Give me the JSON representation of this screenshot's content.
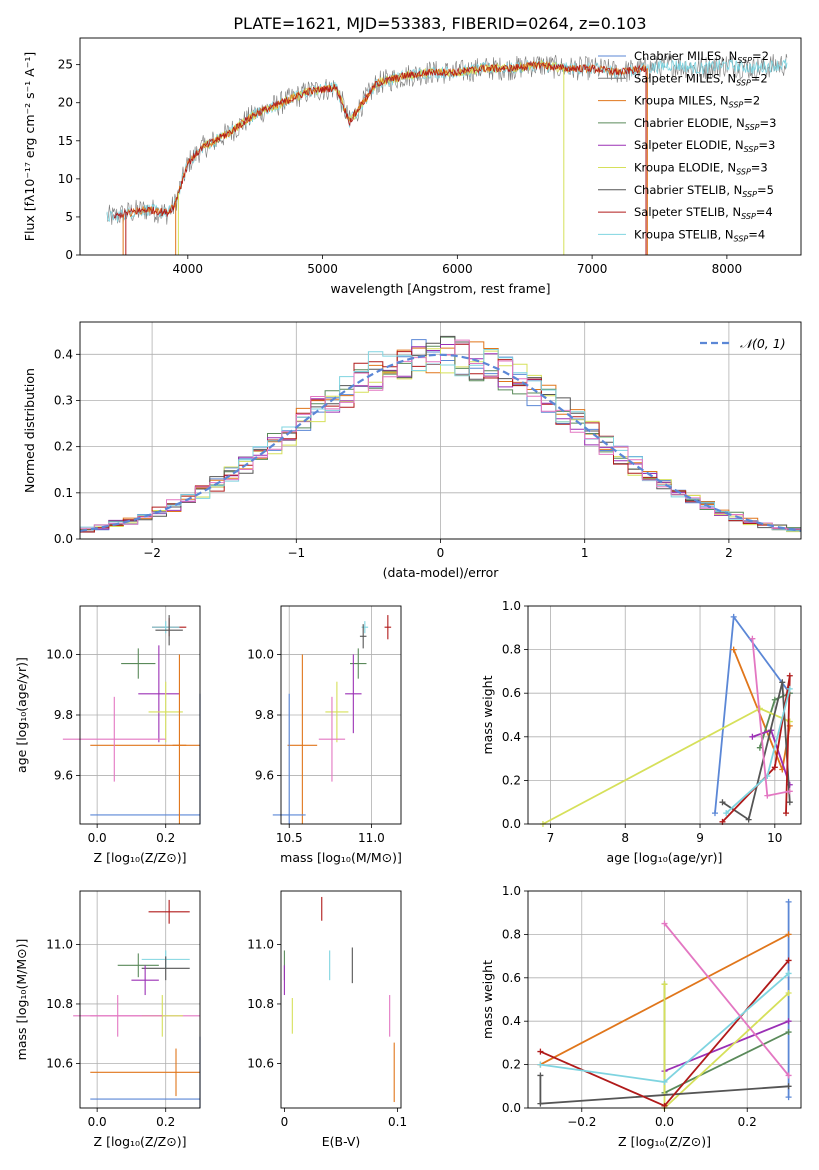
{
  "figure_title": "PLATE=1621, MJD=53383, FIBERID=0264, z=0.103",
  "colors": {
    "Chabrier MILES": "#5b87d6",
    "Salpeter MILES": "#7a7a7a",
    "Kroupa MILES": "#e0761b",
    "Chabrier ELODIE": "#5a8a5a",
    "Salpeter ELODIE": "#9b30b5",
    "Kroupa ELODIE": "#d6e05a",
    "Chabrier STELIB": "#555555",
    "Salpeter STELIB": "#b01a1a",
    "Kroupa STELIB": "#7fd4e0",
    "pink": "#e377c2"
  },
  "chart_data": [
    {
      "id": "spectrum",
      "type": "line",
      "xlabel": "wavelength [Angstrom, rest frame]",
      "ylabel": "Flux [fλ10⁻¹⁷ erg cm⁻² s⁻¹ A⁻¹]",
      "xlim": [
        3200,
        8550
      ],
      "ylim": [
        0,
        28.5
      ],
      "xticks": [
        4000,
        5000,
        6000,
        7000,
        8000
      ],
      "yticks": [
        0,
        5,
        10,
        15,
        20,
        25
      ],
      "grid": false,
      "legend_position": "top-right",
      "legend": [
        {
          "label": "Chabrier MILES, N",
          "sub": "SSP",
          "tail": "=2",
          "color": "#5b87d6"
        },
        {
          "label": "Salpeter MILES, N",
          "sub": "SSP",
          "tail": "=2",
          "color": "#7a7a7a"
        },
        {
          "label": "Kroupa MILES, N",
          "sub": "SSP",
          "tail": "=2",
          "color": "#e0761b"
        },
        {
          "label": "Chabrier ELODIE, N",
          "sub": "SSP",
          "tail": "=3",
          "color": "#5a8a5a"
        },
        {
          "label": "Salpeter ELODIE, N",
          "sub": "SSP",
          "tail": "=3",
          "color": "#9b30b5"
        },
        {
          "label": "Kroupa ELODIE, N",
          "sub": "SSP",
          "tail": "=3",
          "color": "#d6e05a"
        },
        {
          "label": "Chabrier STELIB, N",
          "sub": "SSP",
          "tail": "=5",
          "color": "#555555"
        },
        {
          "label": "Salpeter STELIB, N",
          "sub": "SSP",
          "tail": "=4",
          "color": "#b01a1a"
        },
        {
          "label": "Kroupa STELIB, N",
          "sub": "SSP",
          "tail": "=4",
          "color": "#7fd4e0"
        }
      ],
      "data_envelope": {
        "x": [
          3450,
          3550,
          3700,
          3850,
          3900,
          4000,
          4100,
          4300,
          4500,
          4700,
          4900,
          5100,
          5200,
          5400,
          5600,
          5800,
          6000,
          6200,
          6400,
          6600,
          6800,
          7000,
          7200,
          7400,
          7600,
          7800,
          8000,
          8200,
          8400
        ],
        "y": [
          5.0,
          5.5,
          6.0,
          5.5,
          6.5,
          12.0,
          14.0,
          16.0,
          18.5,
          20.0,
          21.5,
          22.0,
          17.5,
          22.5,
          23.5,
          24.0,
          24.0,
          24.5,
          24.5,
          25.0,
          24.5,
          24.5,
          24.0,
          24.5,
          25.0,
          24.5,
          25.0,
          24.5,
          25.0
        ]
      },
      "spectra": [
        {
          "name": "Salpeter MILES",
          "color": "#7a7a7a",
          "x_range": [
            3400,
            8450
          ],
          "noise": 1.6,
          "width": 0.6
        },
        {
          "name": "Kroupa STELIB",
          "color": "#7fd4e0",
          "x_range": [
            3400,
            8450
          ],
          "noise": 0.8,
          "width": 0.8
        },
        {
          "name": "Kroupa ELODIE",
          "color": "#d6e05a",
          "x_range": [
            4100,
            6800
          ],
          "noise": 0.6,
          "width": 0.8
        },
        {
          "name": "Kroupa MILES",
          "color": "#e0761b",
          "x_range": [
            3550,
            7400
          ],
          "noise": 0.5,
          "width": 0.8
        },
        {
          "name": "Salpeter STELIB",
          "color": "#b01a1a",
          "x_range": [
            3450,
            7400
          ],
          "noise": 0.5,
          "width": 0.8
        }
      ],
      "drop_lines": [
        {
          "x": 3520,
          "color": "#e0761b"
        },
        {
          "x": 3540,
          "color": "#b01a1a"
        },
        {
          "x": 3910,
          "color": "#e0761b"
        },
        {
          "x": 3930,
          "color": "#d6e05a"
        },
        {
          "x": 6790,
          "color": "#d6e05a"
        },
        {
          "x": 7400,
          "color": "#b01a1a"
        },
        {
          "x": 7410,
          "color": "#e0761b"
        }
      ]
    },
    {
      "id": "residuals",
      "type": "bar",
      "xlabel": "(data-model)/error",
      "ylabel": "Normed distribution",
      "xlim": [
        -2.5,
        2.5
      ],
      "ylim": [
        0,
        0.47
      ],
      "xticks": [
        -2,
        -1,
        0,
        1,
        2
      ],
      "xtick_labels": [
        "−2",
        "−1",
        "0",
        "1",
        "2"
      ],
      "yticks": [
        0.0,
        0.1,
        0.2,
        0.3,
        0.4
      ],
      "ytick_labels": [
        "0.0",
        "0.1",
        "0.2",
        "0.3",
        "0.4"
      ],
      "grid": true,
      "legend_position": "top-right",
      "legend_label": "𝒩(0, 1)",
      "bin_width": 0.1,
      "bin_start": -2.5,
      "series_colors": [
        "#5b87d6",
        "#e0761b",
        "#5a8a5a",
        "#9b30b5",
        "#d6e05a",
        "#555555",
        "#b01a1a",
        "#7fd4e0",
        "#e377c2"
      ],
      "gaussian": {
        "mean": 0,
        "sigma": 1,
        "color": "#5b87d6"
      }
    },
    {
      "id": "age-vs-Z",
      "type": "scatter",
      "xlabel": "Z [log₁₀(Z/Z⊙)]",
      "ylabel": "age  [log₁₀(age/yr)]",
      "xlim": [
        -0.05,
        0.3
      ],
      "ylim": [
        9.44,
        10.16
      ],
      "xticks": [
        0.0,
        0.2
      ],
      "xtick_labels": [
        "0.0",
        "0.2"
      ],
      "yticks": [
        9.6,
        9.8,
        10.0
      ],
      "ytick_labels": [
        "9.6",
        "9.8",
        "10.0"
      ],
      "grid": true,
      "points": [
        {
          "x": 0.21,
          "y": 10.09,
          "xerr": 0.05,
          "yerr": 0.03,
          "color": "#b01a1a"
        },
        {
          "x": 0.2,
          "y": 10.09,
          "xerr": 0.04,
          "yerr": 0.02,
          "color": "#7fd4e0"
        },
        {
          "x": 0.21,
          "y": 10.08,
          "xerr": 0.04,
          "yerr": 0.05,
          "color": "#555555"
        },
        {
          "x": 0.12,
          "y": 9.97,
          "xerr": 0.05,
          "yerr": 0.05,
          "color": "#5a8a5a"
        },
        {
          "x": 0.18,
          "y": 9.87,
          "xerr": 0.06,
          "yerr": 0.16,
          "color": "#9b30b5"
        },
        {
          "x": 0.2,
          "y": 9.81,
          "xerr": 0.05,
          "yerr": 0.1,
          "color": "#d6e05a"
        },
        {
          "x": 0.05,
          "y": 9.72,
          "xerr": 0.15,
          "yerr": 0.14,
          "color": "#e377c2"
        },
        {
          "x": 0.24,
          "y": 9.7,
          "xerr": 0.02,
          "yerr": 0.3,
          "color": "#e0761b"
        },
        {
          "x": 0.3,
          "y": 9.47,
          "xerr": 0.0,
          "yerr": 0.4,
          "color": "#5b87d6"
        }
      ],
      "segments": [
        {
          "x0": -0.02,
          "x1": 0.3,
          "y0": 9.7,
          "y1": 9.7,
          "color": "#e0761b"
        },
        {
          "x0": -0.02,
          "x1": 0.3,
          "y0": 9.47,
          "y1": 9.47,
          "color": "#5b87d6"
        }
      ]
    },
    {
      "id": "age-vs-mass",
      "type": "scatter",
      "xlabel": "mass [log₁₀(M/M⊙)]",
      "ylabel": "",
      "xlim": [
        10.45,
        11.18
      ],
      "ylim": [
        9.44,
        10.16
      ],
      "xticks": [
        10.5,
        11.0
      ],
      "xtick_labels": [
        "10.5",
        "11.0"
      ],
      "yticks": [
        9.6,
        9.8,
        10.0
      ],
      "ytick_labels": [
        "9.6",
        "9.8",
        "10.0"
      ],
      "grid": true,
      "points": [
        {
          "x": 11.1,
          "y": 10.09,
          "xerr": 0.02,
          "yerr": 0.04,
          "color": "#b01a1a"
        },
        {
          "x": 10.96,
          "y": 10.09,
          "xerr": 0.02,
          "yerr": 0.02,
          "color": "#7fd4e0"
        },
        {
          "x": 10.95,
          "y": 10.06,
          "xerr": 0.02,
          "yerr": 0.04,
          "color": "#555555"
        },
        {
          "x": 10.92,
          "y": 9.97,
          "xerr": 0.05,
          "yerr": 0.05,
          "color": "#5a8a5a"
        },
        {
          "x": 10.89,
          "y": 9.87,
          "xerr": 0.05,
          "yerr": 0.13,
          "color": "#9b30b5"
        },
        {
          "x": 10.79,
          "y": 9.81,
          "xerr": 0.07,
          "yerr": 0.1,
          "color": "#d6e05a"
        },
        {
          "x": 10.76,
          "y": 9.72,
          "xerr": 0.08,
          "yerr": 0.14,
          "color": "#e377c2"
        },
        {
          "x": 10.58,
          "y": 9.7,
          "xerr": 0.09,
          "yerr": 0.3,
          "color": "#e0761b"
        },
        {
          "x": 10.5,
          "y": 9.47,
          "xerr": 0.1,
          "yerr": 0.4,
          "color": "#5b87d6"
        }
      ]
    },
    {
      "id": "weight-vs-age",
      "type": "line",
      "xlabel": "age  [log₁₀(age/yr)]",
      "ylabel": "mass weight",
      "xlim": [
        6.7,
        10.35
      ],
      "ylim": [
        0,
        1.0
      ],
      "xticks": [
        7,
        8,
        9,
        10
      ],
      "xtick_labels": [
        "7",
        "8",
        "9",
        "10"
      ],
      "yticks": [
        0.0,
        0.2,
        0.4,
        0.6,
        0.8,
        1.0
      ],
      "ytick_labels": [
        "0.0",
        "0.2",
        "0.4",
        "0.6",
        "0.8",
        "1.0"
      ],
      "grid": true,
      "series": [
        {
          "name": "Chabrier MILES",
          "color": "#5b87d6",
          "x": [
            9.2,
            9.45,
            10.2
          ],
          "y": [
            0.05,
            0.95,
            0.6
          ]
        },
        {
          "name": "Kroupa MILES",
          "color": "#e0761b",
          "x": [
            9.45,
            10.1,
            10.2
          ],
          "y": [
            0.8,
            0.25,
            0.45
          ]
        },
        {
          "name": "Chabrier ELODIE",
          "color": "#5a8a5a",
          "x": [
            9.8,
            10.0,
            10.2
          ],
          "y": [
            0.35,
            0.57,
            0.6
          ]
        },
        {
          "name": "Salpeter ELODIE",
          "color": "#9b30b5",
          "x": [
            9.7,
            9.95,
            10.2
          ],
          "y": [
            0.4,
            0.43,
            0.18
          ]
        },
        {
          "name": "Kroupa ELODIE",
          "color": "#d6e05a",
          "x": [
            6.9,
            9.8,
            10.2
          ],
          "y": [
            0.0,
            0.53,
            0.47
          ]
        },
        {
          "name": "Chabrier STELIB",
          "color": "#555555",
          "x": [
            9.3,
            9.65,
            10.1,
            10.2
          ],
          "y": [
            0.1,
            0.02,
            0.65,
            0.1
          ]
        },
        {
          "name": "Salpeter STELIB",
          "color": "#b01a1a",
          "x": [
            9.3,
            10.0,
            10.2,
            10.15
          ],
          "y": [
            0.01,
            0.26,
            0.68,
            0.05
          ]
        },
        {
          "name": "Kroupa STELIB",
          "color": "#7fd4e0",
          "x": [
            9.35,
            9.9,
            10.2
          ],
          "y": [
            0.05,
            0.22,
            0.62
          ]
        },
        {
          "name": "pink",
          "color": "#e377c2",
          "x": [
            9.7,
            9.9,
            10.2
          ],
          "y": [
            0.85,
            0.13,
            0.15
          ]
        }
      ]
    },
    {
      "id": "mass-vs-Z",
      "type": "scatter",
      "xlabel": "Z [log₁₀(Z/Z⊙)]",
      "ylabel": "mass [log₁₀(M/M⊙)]",
      "xlim": [
        -0.05,
        0.3
      ],
      "ylim": [
        10.45,
        11.18
      ],
      "xticks": [
        0.0,
        0.2
      ],
      "xtick_labels": [
        "0.0",
        "0.2"
      ],
      "yticks": [
        10.6,
        10.8,
        11.0
      ],
      "ytick_labels": [
        "10.6",
        "10.8",
        "11.0"
      ],
      "grid": true,
      "points": [
        {
          "x": 0.21,
          "y": 11.11,
          "xerr": 0.06,
          "yerr": 0.04,
          "color": "#b01a1a"
        },
        {
          "x": 0.2,
          "y": 10.95,
          "xerr": 0.07,
          "yerr": 0.03,
          "color": "#7fd4e0"
        },
        {
          "x": 0.2,
          "y": 10.92,
          "xerr": 0.07,
          "yerr": 0.04,
          "color": "#555555"
        },
        {
          "x": 0.12,
          "y": 10.93,
          "xerr": 0.06,
          "yerr": 0.04,
          "color": "#5a8a5a"
        },
        {
          "x": 0.14,
          "y": 10.88,
          "xerr": 0.04,
          "yerr": 0.05,
          "color": "#9b30b5"
        },
        {
          "x": 0.19,
          "y": 10.76,
          "xerr": 0.06,
          "yerr": 0.07,
          "color": "#d6e05a"
        },
        {
          "x": 0.06,
          "y": 10.76,
          "xerr": 0.13,
          "yerr": 0.07,
          "color": "#e377c2"
        },
        {
          "x": 0.23,
          "y": 10.57,
          "xerr": 0.0,
          "yerr": 0.08,
          "color": "#e0761b"
        },
        {
          "x": 0.3,
          "y": 10.48,
          "xerr": 0.0,
          "yerr": 0.21,
          "color": "#5b87d6"
        }
      ],
      "segments": [
        {
          "x0": -0.02,
          "x1": 0.3,
          "y0": 10.76,
          "y1": 10.76,
          "color": "#e377c2"
        },
        {
          "x0": -0.02,
          "x1": 0.3,
          "y0": 10.57,
          "y1": 10.57,
          "color": "#e0761b"
        },
        {
          "x0": -0.02,
          "x1": 0.3,
          "y0": 10.48,
          "y1": 10.48,
          "color": "#5b87d6"
        }
      ]
    },
    {
      "id": "mass-vs-ebv",
      "type": "scatter",
      "xlabel": "E(B-V)",
      "ylabel": "",
      "xlim": [
        -0.003,
        0.103
      ],
      "ylim": [
        10.45,
        11.18
      ],
      "xticks": [
        0.0,
        0.1
      ],
      "xtick_labels": [
        "0",
        "0.1"
      ],
      "yticks": [
        10.6,
        10.8,
        11.0
      ],
      "ytick_labels": [
        "10.6",
        "10.8",
        "11.0"
      ],
      "grid": false,
      "points": [
        {
          "x": 0.033,
          "y": 11.12,
          "xerr": 0,
          "yerr": 0.04,
          "color": "#b01a1a"
        },
        {
          "x": 0.06,
          "y": 10.93,
          "xerr": 0,
          "yerr": 0.06,
          "color": "#555555"
        },
        {
          "x": 0.04,
          "y": 10.93,
          "xerr": 0,
          "yerr": 0.05,
          "color": "#7fd4e0"
        },
        {
          "x": 0.0,
          "y": 10.93,
          "xerr": 0,
          "yerr": 0.05,
          "color": "#5a8a5a"
        },
        {
          "x": 0.0,
          "y": 10.88,
          "xerr": 0,
          "yerr": 0.05,
          "color": "#9b30b5"
        },
        {
          "x": 0.007,
          "y": 10.76,
          "xerr": 0,
          "yerr": 0.06,
          "color": "#d6e05a"
        },
        {
          "x": 0.093,
          "y": 10.76,
          "xerr": 0,
          "yerr": 0.07,
          "color": "#e377c2"
        },
        {
          "x": 0.097,
          "y": 10.57,
          "xerr": 0,
          "yerr": 0.1,
          "color": "#e0761b"
        }
      ]
    },
    {
      "id": "weight-vs-Z",
      "type": "line",
      "xlabel": "Z [log₁₀(Z/Z⊙)]",
      "ylabel": "mass weight",
      "xlim": [
        -0.33,
        0.33
      ],
      "ylim": [
        0,
        1.0
      ],
      "xticks": [
        -0.2,
        0.0,
        0.2
      ],
      "xtick_labels": [
        "−0.2",
        "0.0",
        "0.2"
      ],
      "yticks": [
        0.0,
        0.2,
        0.4,
        0.6,
        0.8,
        1.0
      ],
      "ytick_labels": [
        "0.0",
        "0.2",
        "0.4",
        "0.6",
        "0.8",
        "1.0"
      ],
      "grid": true,
      "series": [
        {
          "name": "Chabrier MILES",
          "color": "#5b87d6",
          "x": [
            0.3,
            0.3
          ],
          "y": [
            0.05,
            0.95
          ]
        },
        {
          "name": "Kroupa MILES",
          "color": "#e0761b",
          "x": [
            -0.3,
            0.3
          ],
          "y": [
            0.2,
            0.8
          ]
        },
        {
          "name": "Chabrier ELODIE",
          "color": "#5a8a5a",
          "x": [
            0.0,
            0.0,
            0.3
          ],
          "y": [
            0.57,
            0.07,
            0.35
          ]
        },
        {
          "name": "Salpeter ELODIE",
          "color": "#9b30b5",
          "x": [
            0.0,
            0.3
          ],
          "y": [
            0.17,
            0.4
          ]
        },
        {
          "name": "Kroupa ELODIE",
          "color": "#d6e05a",
          "x": [
            0.0,
            0.0,
            0.3
          ],
          "y": [
            0.57,
            0.0,
            0.53
          ]
        },
        {
          "name": "Chabrier STELIB",
          "color": "#555555",
          "x": [
            -0.3,
            -0.3,
            0.3
          ],
          "y": [
            0.15,
            0.02,
            0.1
          ]
        },
        {
          "name": "Salpeter STELIB",
          "color": "#b01a1a",
          "x": [
            -0.3,
            0.0,
            0.3
          ],
          "y": [
            0.26,
            0.01,
            0.68
          ]
        },
        {
          "name": "Kroupa STELIB",
          "color": "#7fd4e0",
          "x": [
            -0.3,
            0.0,
            0.3
          ],
          "y": [
            0.2,
            0.12,
            0.62
          ]
        },
        {
          "name": "pink",
          "color": "#e377c2",
          "x": [
            0.0,
            0.3
          ],
          "y": [
            0.85,
            0.15
          ]
        }
      ]
    }
  ]
}
